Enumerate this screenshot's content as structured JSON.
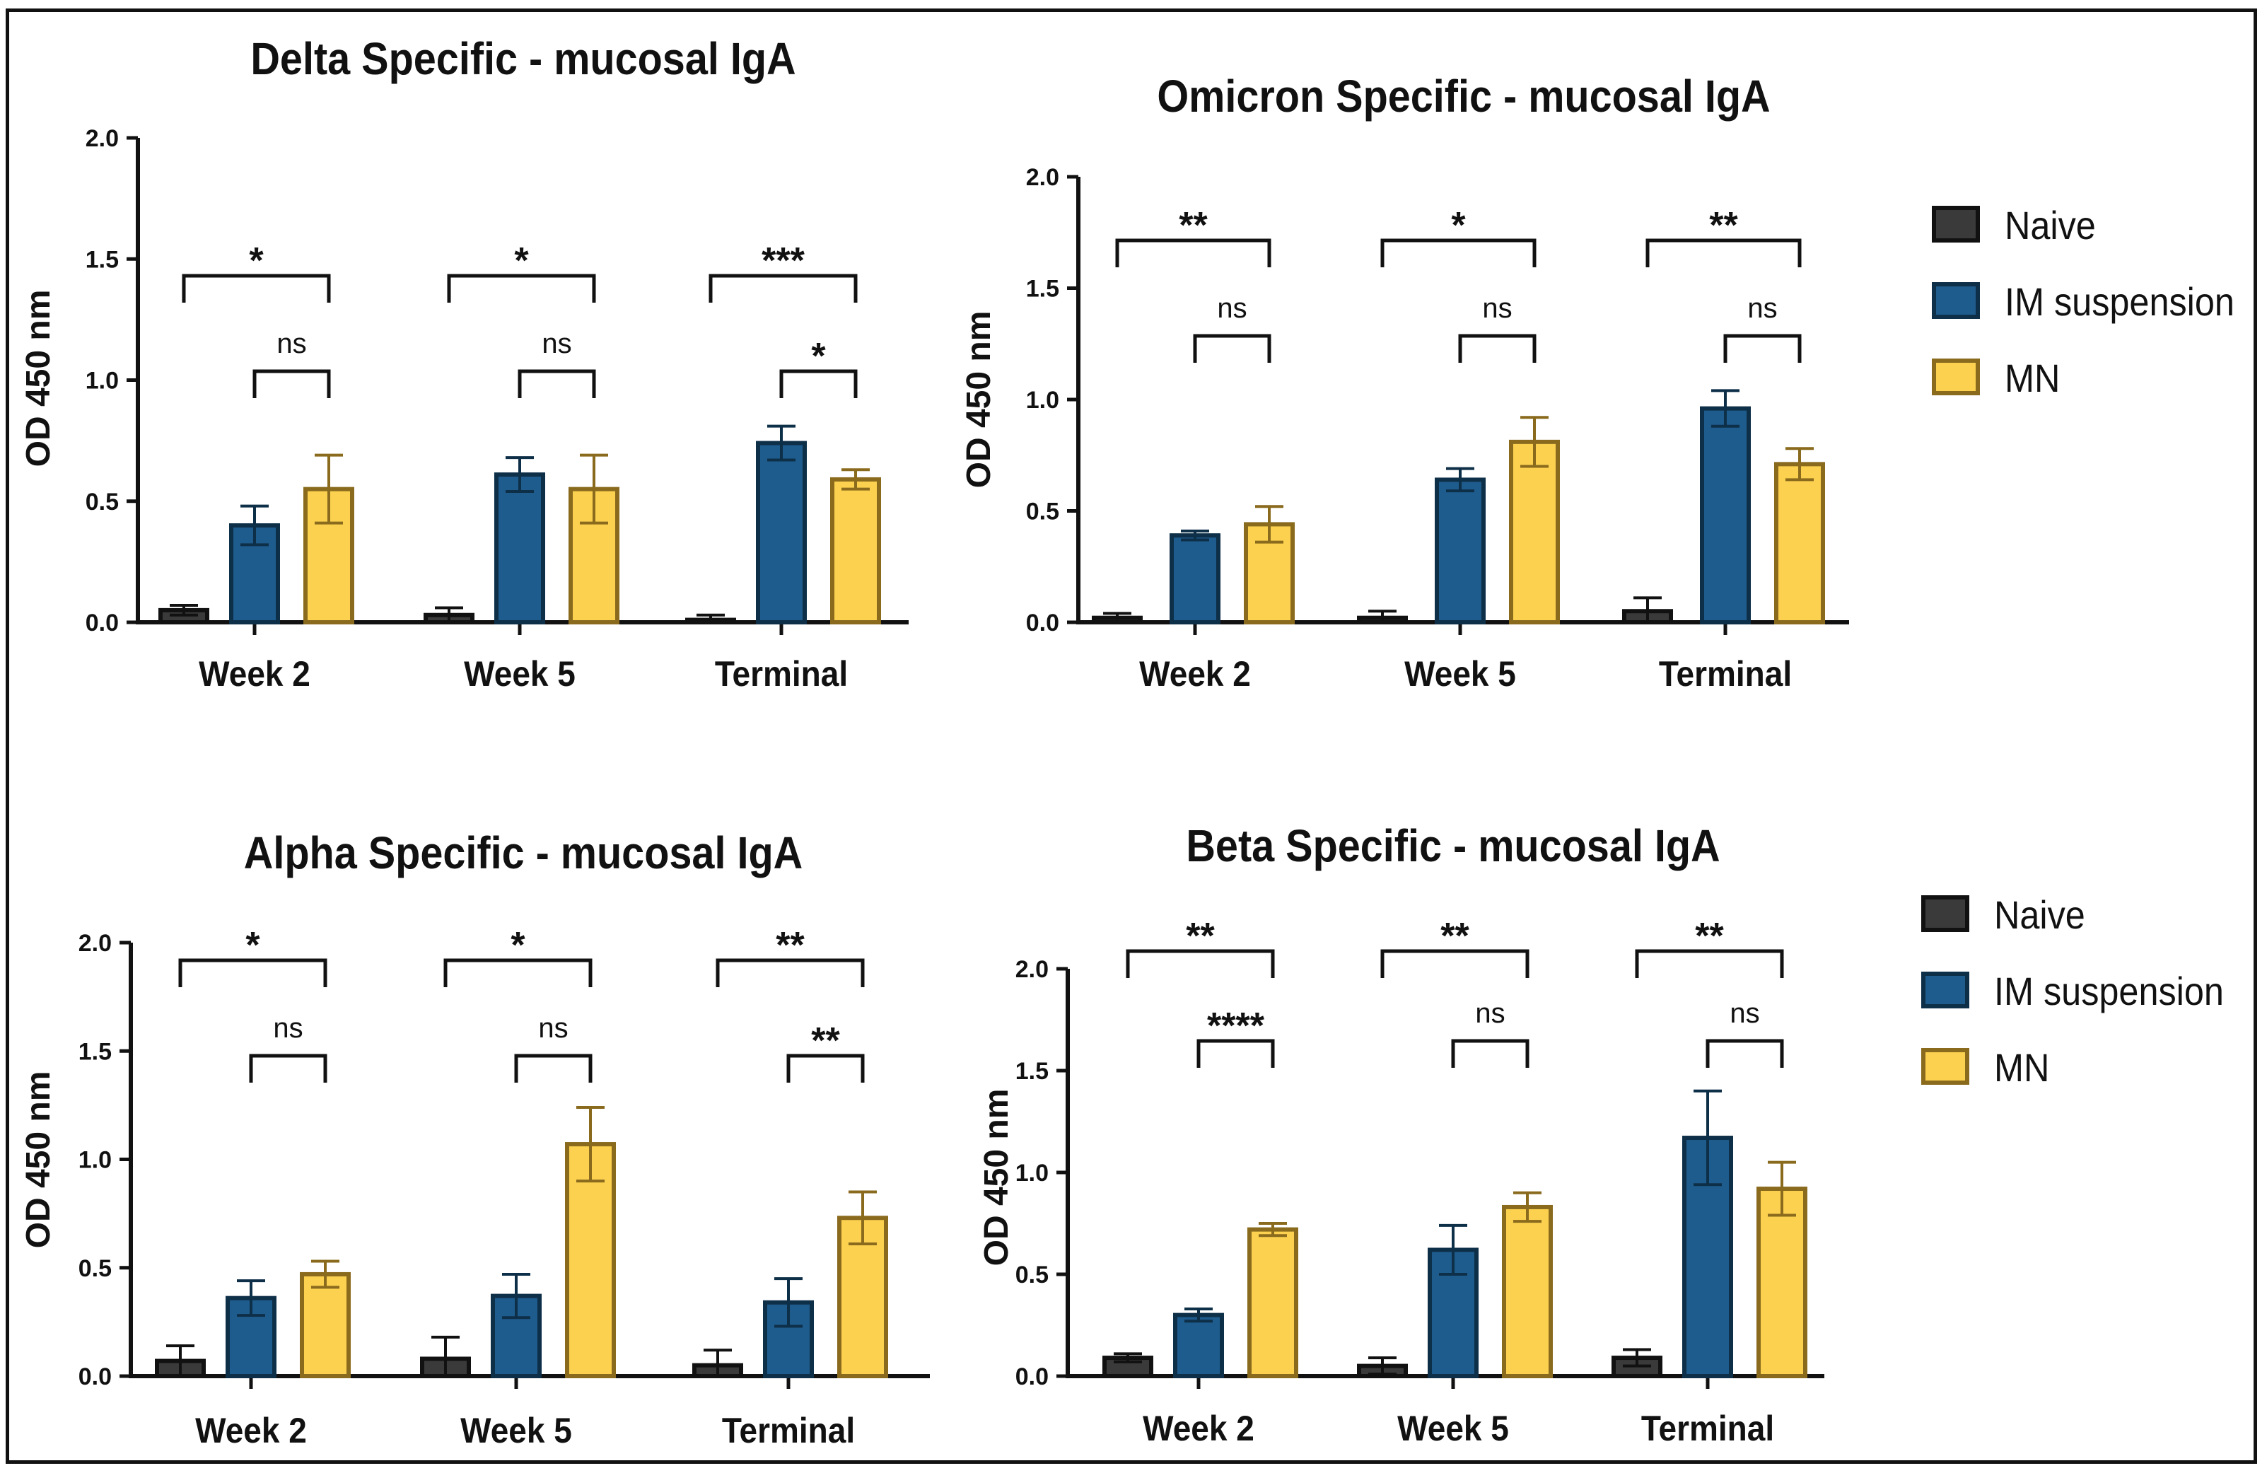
{
  "chart_data": [
    {
      "type": "bar",
      "title": "Delta Specific - mucosal  IgA",
      "ylabel": "OD  450 nm",
      "xlabel": "",
      "ylim": [
        0,
        2.0
      ],
      "yticks": [
        "0.0",
        "0.5",
        "1.0",
        "1.5",
        "2.0"
      ],
      "categories": [
        "Week 2",
        "Week 5",
        "Terminal"
      ],
      "series": [
        {
          "name": "Naive",
          "values": [
            0.05,
            0.03,
            0.01
          ],
          "errors": [
            0.02,
            0.03,
            0.02
          ]
        },
        {
          "name": "IM suspension",
          "values": [
            0.4,
            0.61,
            0.74
          ],
          "errors": [
            0.08,
            0.07,
            0.07
          ]
        },
        {
          "name": "MN",
          "values": [
            0.55,
            0.55,
            0.59
          ],
          "errors": [
            0.14,
            0.14,
            0.04
          ]
        }
      ],
      "significance": [
        {
          "outer": "*",
          "inner": "ns"
        },
        {
          "outer": "*",
          "inner": "ns"
        },
        {
          "outer": "***",
          "inner": "*"
        }
      ]
    },
    {
      "type": "bar",
      "title": "Omicron Specific - mucosal  IgA",
      "ylabel": "OD  450 nm",
      "xlabel": "",
      "ylim": [
        0,
        2.0
      ],
      "yticks": [
        "0.0",
        "0.5",
        "1.0",
        "1.5",
        "2.0"
      ],
      "categories": [
        "Week 2",
        "Week 5",
        "Terminal"
      ],
      "series": [
        {
          "name": "Naive",
          "values": [
            0.02,
            0.02,
            0.05
          ],
          "errors": [
            0.02,
            0.03,
            0.06
          ]
        },
        {
          "name": "IM suspension",
          "values": [
            0.39,
            0.64,
            0.96
          ],
          "errors": [
            0.02,
            0.05,
            0.08
          ]
        },
        {
          "name": "MN",
          "values": [
            0.44,
            0.81,
            0.71
          ],
          "errors": [
            0.08,
            0.11,
            0.07
          ]
        }
      ],
      "significance": [
        {
          "outer": "**",
          "inner": "ns"
        },
        {
          "outer": "*",
          "inner": "ns"
        },
        {
          "outer": "**",
          "inner": "ns"
        }
      ]
    },
    {
      "type": "bar",
      "title": "Alpha Specific - mucosal  IgA",
      "ylabel": "OD  450 nm",
      "xlabel": "",
      "ylim": [
        0,
        2.0
      ],
      "yticks": [
        "0.0",
        "0.5",
        "1.0",
        "1.5",
        "2.0"
      ],
      "categories": [
        "Week 2",
        "Week 5",
        "Terminal"
      ],
      "series": [
        {
          "name": "Naive",
          "values": [
            0.07,
            0.08,
            0.05
          ],
          "errors": [
            0.07,
            0.1,
            0.07
          ]
        },
        {
          "name": "IM suspension",
          "values": [
            0.36,
            0.37,
            0.34
          ],
          "errors": [
            0.08,
            0.1,
            0.11
          ]
        },
        {
          "name": "MN",
          "values": [
            0.47,
            1.07,
            0.73
          ],
          "errors": [
            0.06,
            0.17,
            0.12
          ]
        }
      ],
      "significance": [
        {
          "outer": "*",
          "inner": "ns"
        },
        {
          "outer": "*",
          "inner": "ns"
        },
        {
          "outer": "**",
          "inner": "**"
        }
      ]
    },
    {
      "type": "bar",
      "title": "Beta Specific - mucosal  IgA",
      "ylabel": "OD  450 nm",
      "xlabel": "",
      "ylim": [
        0,
        2.0
      ],
      "yticks": [
        "0.0",
        "0.5",
        "1.0",
        "1.5",
        "2.0"
      ],
      "categories": [
        "Week 2",
        "Week 5",
        "Terminal"
      ],
      "series": [
        {
          "name": "Naive",
          "values": [
            0.09,
            0.05,
            0.09
          ],
          "errors": [
            0.02,
            0.04,
            0.04
          ]
        },
        {
          "name": "IM suspension",
          "values": [
            0.3,
            0.62,
            1.17
          ],
          "errors": [
            0.03,
            0.12,
            0.23
          ]
        },
        {
          "name": "MN",
          "values": [
            0.72,
            0.83,
            0.92
          ],
          "errors": [
            0.03,
            0.07,
            0.13
          ]
        }
      ],
      "significance": [
        {
          "outer": "**",
          "inner": "****"
        },
        {
          "outer": "**",
          "inner": "ns"
        },
        {
          "outer": "**",
          "inner": "ns"
        }
      ]
    }
  ],
  "legend": {
    "items": [
      {
        "label": "Naive",
        "color": "#3a3a3a"
      },
      {
        "label": "IM suspension",
        "color": "#1f5c8e"
      },
      {
        "label": "MN",
        "color": "#fcd150"
      }
    ],
    "edge_colors": [
      "#111111",
      "#0e2f48",
      "#8a6b1e"
    ]
  }
}
